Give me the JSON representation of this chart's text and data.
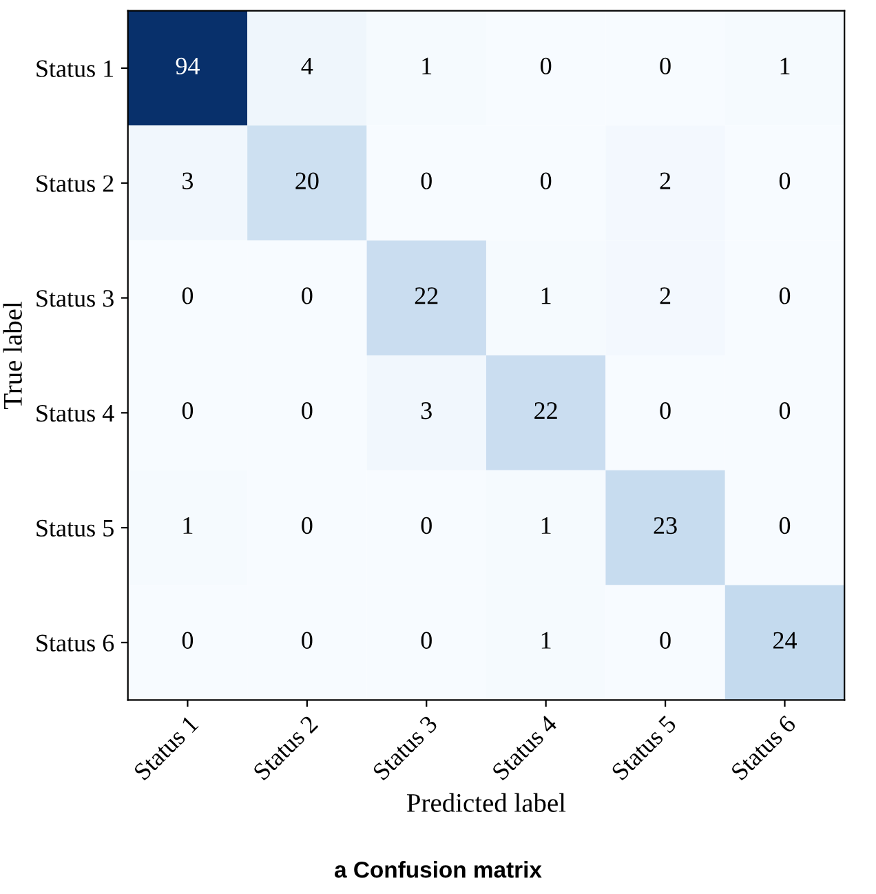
{
  "chart_data": {
    "type": "heatmap",
    "title": "a Confusion matrix",
    "xlabel": "Predicted label",
    "ylabel": "True label",
    "categories": [
      "Status 1",
      "Status 2",
      "Status 3",
      "Status 4",
      "Status 5",
      "Status 6"
    ],
    "y_categories": [
      "Status 1",
      "Status 2",
      "Status 3",
      "Status 4",
      "Status 5",
      "Status 6"
    ],
    "cells": [
      [
        94,
        4,
        1,
        0,
        0,
        1
      ],
      [
        3,
        20,
        0,
        0,
        2,
        0
      ],
      [
        0,
        0,
        22,
        1,
        2,
        0
      ],
      [
        0,
        0,
        3,
        22,
        0,
        0
      ],
      [
        1,
        0,
        0,
        1,
        23,
        0
      ],
      [
        0,
        0,
        0,
        1,
        0,
        24
      ]
    ],
    "data_labels": true
  }
}
